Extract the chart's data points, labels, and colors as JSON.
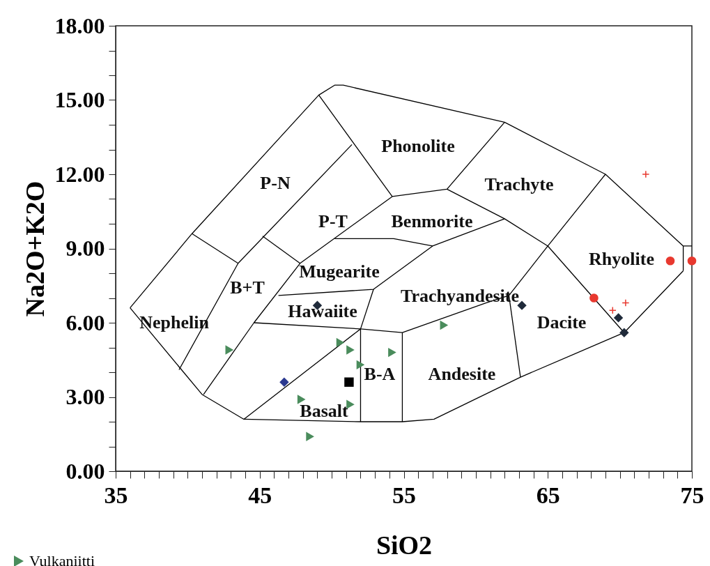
{
  "chart_data": {
    "type": "scatter",
    "xlabel": "SiO2",
    "ylabel": "Na2O+K2O",
    "xlim": [
      35,
      75
    ],
    "ylim": [
      0,
      18
    ],
    "xticks": [
      35,
      {
        "value": 36,
        "label": null
      },
      {
        "value": 37,
        "label": null
      },
      {
        "value": 38,
        "label": null
      },
      {
        "value": 39,
        "label": null
      },
      {
        "value": 40,
        "label": null
      },
      {
        "value": 41,
        "label": null
      },
      {
        "value": 42,
        "label": null
      },
      {
        "value": 43,
        "label": null
      },
      {
        "value": 44,
        "label": null
      },
      45,
      {
        "value": 46,
        "label": null
      },
      {
        "value": 47,
        "label": null
      },
      {
        "value": 48,
        "label": null
      },
      {
        "value": 49,
        "label": null
      },
      {
        "value": 50,
        "label": null
      },
      {
        "value": 51,
        "label": null
      },
      {
        "value": 52,
        "label": null
      },
      {
        "value": 53,
        "label": null
      },
      {
        "value": 54,
        "label": null
      },
      55,
      {
        "value": 56,
        "label": null
      },
      {
        "value": 57,
        "label": null
      },
      {
        "value": 58,
        "label": null
      },
      {
        "value": 59,
        "label": null
      },
      {
        "value": 60,
        "label": null
      },
      {
        "value": 61,
        "label": null
      },
      {
        "value": 62,
        "label": null
      },
      {
        "value": 63,
        "label": null
      },
      {
        "value": 64,
        "label": null
      },
      65,
      {
        "value": 66,
        "label": null
      },
      {
        "value": 67,
        "label": null
      },
      {
        "value": 68,
        "label": null
      },
      {
        "value": 69,
        "label": null
      },
      {
        "value": 70,
        "label": null
      },
      {
        "value": 71,
        "label": null
      },
      {
        "value": 72,
        "label": null
      },
      {
        "value": 73,
        "label": null
      },
      {
        "value": 74,
        "label": null
      },
      75
    ],
    "yticks": [
      {
        "value": 0,
        "label": "0.00"
      },
      {
        "value": 1,
        "label": null
      },
      {
        "value": 2,
        "label": null
      },
      {
        "value": 3,
        "label": "3.00"
      },
      {
        "value": 4,
        "label": null
      },
      {
        "value": 5,
        "label": null
      },
      {
        "value": 6,
        "label": "6.00"
      },
      {
        "value": 7,
        "label": null
      },
      {
        "value": 8,
        "label": null
      },
      {
        "value": 9,
        "label": "9.00"
      },
      {
        "value": 10,
        "label": null
      },
      {
        "value": 11,
        "label": null
      },
      {
        "value": 12,
        "label": "12.00"
      },
      {
        "value": 13,
        "label": null
      },
      {
        "value": 14,
        "label": null
      },
      {
        "value": 15,
        "label": "15.00"
      },
      {
        "value": 16,
        "label": null
      },
      {
        "value": 17,
        "label": null
      },
      {
        "value": 18,
        "label": "18.00"
      }
    ],
    "grid": false,
    "legend": "bottom left",
    "series": [
      {
        "type": "line",
        "color": "#000000",
        "x": [
          36,
          40.3,
          49.1,
          50.2,
          50.8,
          62,
          69,
          74.4,
          75
        ],
        "values": [
          6.6,
          9.6,
          15.2,
          15.6,
          15.6,
          14.1,
          12,
          9.1,
          9.1
        ]
      },
      {
        "type": "line",
        "color": "#000000",
        "x": [
          74.4,
          74.4
        ],
        "values": [
          9.1,
          8.1
        ]
      },
      {
        "type": "line",
        "color": "#000000",
        "x": [
          36,
          41,
          43.9,
          52,
          54.9,
          57.1,
          63.1,
          70.3,
          74.4
        ],
        "values": [
          6.6,
          3.1,
          2.1,
          2.0,
          2.0,
          2.1,
          3.8,
          5.6,
          8.1
        ]
      },
      {
        "type": "line",
        "color": "#000000",
        "x": [
          49.1,
          54.2,
          58,
          62
        ],
        "values": [
          15.2,
          11.1,
          11.4,
          14.1
        ]
      },
      {
        "type": "line",
        "color": "#000000",
        "x": [
          58,
          62,
          65,
          69
        ],
        "values": [
          11.4,
          10.2,
          9.1,
          12
        ]
      },
      {
        "type": "line",
        "color": "#000000",
        "x": [
          65,
          70.3
        ],
        "values": [
          9.1,
          5.6
        ]
      },
      {
        "type": "line",
        "color": "#000000",
        "x": [
          62.3,
          65
        ],
        "values": [
          7.1,
          9.1
        ]
      },
      {
        "type": "line",
        "color": "#000000",
        "x": [
          62.3,
          63.1
        ],
        "values": [
          7.1,
          3.8
        ]
      },
      {
        "type": "line",
        "color": "#000000",
        "x": [
          50.2,
          54.3,
          57,
          62
        ],
        "values": [
          9.4,
          9.4,
          9.1,
          10.2
        ]
      },
      {
        "type": "line",
        "color": "#000000",
        "x": [
          54.2,
          47.8,
          44.6,
          41.1
        ],
        "values": [
          11.1,
          8.4,
          6.0,
          3.1
        ]
      },
      {
        "type": "line",
        "color": "#000000",
        "x": [
          51.4,
          43.5,
          39.4
        ],
        "values": [
          13.2,
          8.4,
          4.1
        ]
      },
      {
        "type": "line",
        "color": "#000000",
        "x": [
          40.3,
          43.5
        ],
        "values": [
          9.6,
          8.4
        ]
      },
      {
        "type": "line",
        "color": "#000000",
        "x": [
          45.2,
          47.8
        ],
        "values": [
          9.5,
          8.4
        ]
      },
      {
        "type": "line",
        "color": "#000000",
        "x": [
          46.3,
          52.9,
          57
        ],
        "values": [
          7.1,
          7.35,
          9.1
        ]
      },
      {
        "type": "line",
        "color": "#000000",
        "x": [
          52,
          52,
          52.9
        ],
        "values": [
          2.0,
          5.75,
          7.35
        ]
      },
      {
        "type": "line",
        "color": "#000000",
        "x": [
          44.6,
          52,
          54.9,
          60.7,
          62.3
        ],
        "values": [
          6.0,
          5.75,
          5.6,
          6.8,
          7.1
        ]
      },
      {
        "type": "line",
        "color": "#000000",
        "x": [
          43.9,
          52
        ],
        "values": [
          2.1,
          5.75
        ]
      },
      {
        "type": "line",
        "color": "#000000",
        "x": [
          54.9,
          54.9
        ],
        "values": [
          5.6,
          2.0
        ]
      },
      {
        "name": "Vulkaniitti",
        "color": "#4a8c5c",
        "marker": "triangle",
        "x": [
          42.9,
          50.6,
          51.3,
          52.0,
          54.2,
          57.8,
          47.9,
          51.3,
          48.5
        ],
        "values": [
          4.9,
          5.2,
          4.9,
          4.3,
          4.8,
          5.9,
          2.9,
          2.7,
          1.4
        ]
      },
      {
        "color": "#2b3990",
        "marker": "diamond",
        "x": [
          46.7
        ],
        "values": [
          3.6
        ]
      },
      {
        "color": "#000000",
        "marker": "square",
        "x": [
          51.2
        ],
        "values": [
          3.6
        ]
      },
      {
        "color": "#1f2a3a",
        "marker": "diamond",
        "x": [
          49.0,
          63.2,
          69.9,
          70.3
        ],
        "values": [
          6.7,
          6.7,
          6.2,
          5.6
        ]
      },
      {
        "color": "#e8392f",
        "marker": "circle",
        "x": [
          73.5,
          75.0,
          68.2
        ],
        "values": [
          8.5,
          8.5,
          7.0
        ]
      },
      {
        "color": "#e8392f",
        "marker": "cross",
        "x": [
          71.8,
          69.5,
          70.4
        ],
        "values": [
          12.0,
          6.5,
          6.8
        ]
      }
    ],
    "annotations": [
      "Phonolite",
      "Trachyte",
      "P-N",
      "P-T",
      "Benmorite",
      "Mugearite",
      "B+T",
      "Hawaiite",
      "Trachyandesite",
      "Nephelin",
      "Dacite",
      "Rhyolite",
      "B-A",
      "Andesite",
      "Basalt"
    ]
  }
}
